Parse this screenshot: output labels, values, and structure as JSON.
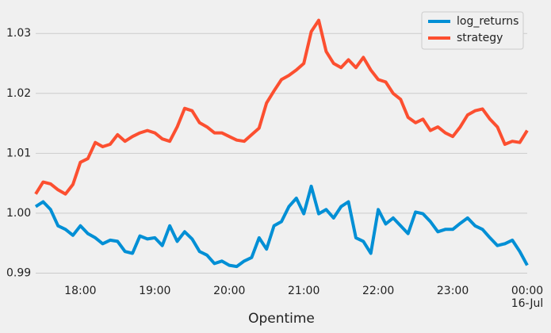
{
  "chart_data": {
    "type": "line",
    "x": [
      "17:24",
      "17:30",
      "17:36",
      "17:42",
      "17:48",
      "17:54",
      "18:00",
      "18:06",
      "18:12",
      "18:18",
      "18:24",
      "18:30",
      "18:36",
      "18:42",
      "18:48",
      "18:54",
      "19:00",
      "19:06",
      "19:12",
      "19:18",
      "19:24",
      "19:30",
      "19:36",
      "19:42",
      "19:48",
      "19:54",
      "20:00",
      "20:06",
      "20:12",
      "20:18",
      "20:24",
      "20:30",
      "20:36",
      "20:42",
      "20:48",
      "20:54",
      "21:00",
      "21:06",
      "21:12",
      "21:18",
      "21:24",
      "21:30",
      "21:36",
      "21:42",
      "21:48",
      "21:54",
      "22:00",
      "22:06",
      "22:12",
      "22:18",
      "22:24",
      "22:30",
      "22:36",
      "22:42",
      "22:48",
      "22:54",
      "23:00",
      "23:06",
      "23:12",
      "23:18",
      "23:24",
      "23:30",
      "23:36",
      "23:42",
      "23:48",
      "23:54",
      "00:00"
    ],
    "series": [
      {
        "name": "log_returns",
        "color": "#008fd5",
        "values": [
          1.0011,
          1.0019,
          1.0006,
          0.9979,
          0.9973,
          0.9963,
          0.9979,
          0.9966,
          0.9959,
          0.9949,
          0.9955,
          0.9953,
          0.9936,
          0.9933,
          0.9962,
          0.9957,
          0.9959,
          0.9946,
          0.9979,
          0.9953,
          0.9969,
          0.9957,
          0.9936,
          0.993,
          0.9916,
          0.992,
          0.9913,
          0.9911,
          0.992,
          0.9926,
          0.9959,
          0.994,
          0.9979,
          0.9986,
          1.0011,
          1.0025,
          0.9999,
          1.0045,
          0.9999,
          1.0006,
          0.9992,
          1.0011,
          1.0019,
          0.9959,
          0.9953,
          0.9933,
          1.0006,
          0.9982,
          0.9992,
          0.9979,
          0.9966,
          1.0002,
          0.9999,
          0.9986,
          0.9969,
          0.9973,
          0.9973,
          0.9983,
          0.9992,
          0.9979,
          0.9973,
          0.9959,
          0.9946,
          0.9949,
          0.9955,
          0.9936,
          0.9913
        ]
      },
      {
        "name": "strategy",
        "color": "#fc4f30",
        "values": [
          1.0032,
          1.0052,
          1.0049,
          1.0039,
          1.0032,
          1.0048,
          1.0085,
          1.0091,
          1.0118,
          1.0111,
          1.0115,
          1.0131,
          1.012,
          1.0128,
          1.0134,
          1.0138,
          1.0134,
          1.0124,
          1.012,
          1.0144,
          1.0175,
          1.0171,
          1.0151,
          1.0144,
          1.0134,
          1.0134,
          1.0128,
          1.0122,
          1.012,
          1.0131,
          1.0142,
          1.0184,
          1.0204,
          1.0223,
          1.023,
          1.0239,
          1.025,
          1.0303,
          1.0322,
          1.027,
          1.025,
          1.0243,
          1.0256,
          1.0243,
          1.026,
          1.0239,
          1.0223,
          1.0219,
          1.02,
          1.019,
          1.016,
          1.0151,
          1.0157,
          1.0138,
          1.0144,
          1.0134,
          1.0128,
          1.0144,
          1.0164,
          1.0171,
          1.0174,
          1.0157,
          1.0144,
          1.0115,
          1.012,
          1.0118,
          1.0138
        ]
      }
    ],
    "xticks": [
      "18:00",
      "19:00",
      "20:00",
      "21:00",
      "22:00",
      "23:00",
      "00:00"
    ],
    "xtick_date": "16-Jul",
    "xlabel": "Opentime",
    "ylim": [
      0.989,
      1.0336
    ],
    "yticks": [
      0.99,
      {
        "value": 1,
        "label": "1.00"
      },
      1.01,
      1.02,
      1.03
    ],
    "grid": true,
    "legend": "upper right"
  }
}
